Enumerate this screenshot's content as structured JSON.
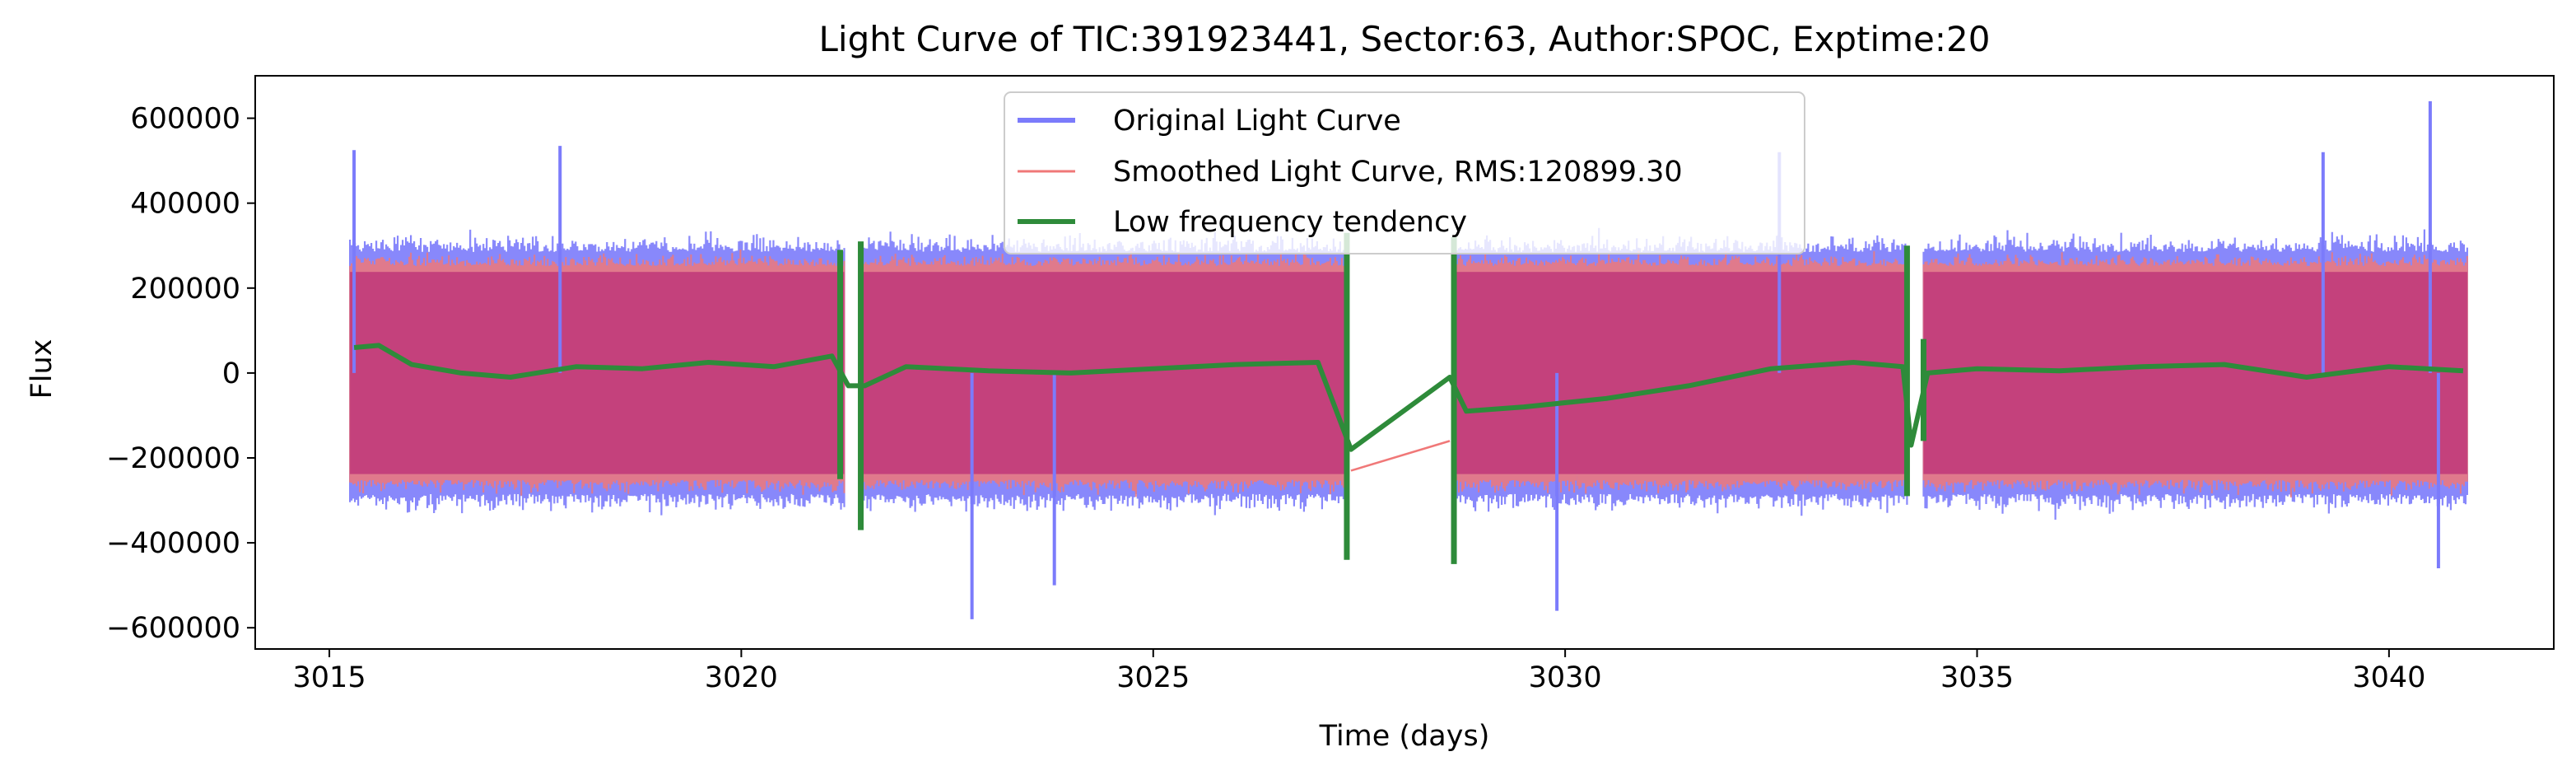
{
  "chart_data": {
    "type": "line",
    "title": "Light Curve of TIC:391923441, Sector:63, Author:SPOC, Exptime:20",
    "xlabel": "Time (days)",
    "ylabel": "Flux",
    "xlim": [
      3014.1,
      3042.0
    ],
    "ylim": [
      -650000,
      700000
    ],
    "xticks": [
      3015,
      3020,
      3025,
      3030,
      3035,
      3040
    ],
    "xtick_labels": [
      "3015",
      "3020",
      "3025",
      "3030",
      "3035",
      "3040"
    ],
    "yticks": [
      -600000,
      -400000,
      -200000,
      0,
      200000,
      400000,
      600000
    ],
    "ytick_labels": [
      "−600000",
      "−400000",
      "−200000",
      "0",
      "200000",
      "400000",
      "600000"
    ],
    "grid": false,
    "legend_position": "top-center",
    "segments": [
      [
        3015.25,
        3021.25
      ],
      [
        3021.45,
        3027.35
      ],
      [
        3028.65,
        3034.15
      ],
      [
        3034.35,
        3040.95
      ]
    ],
    "series": [
      {
        "name": "Original Light Curve",
        "color": "#7b7bfb",
        "typical_range": [
          -300000,
          300000
        ],
        "extremes": [
          {
            "x": 3015.3,
            "y": 525000
          },
          {
            "x": 3017.8,
            "y": 535000
          },
          {
            "x": 3022.8,
            "y": -580000
          },
          {
            "x": 3023.8,
            "y": -500000
          },
          {
            "x": 3029.9,
            "y": -560000
          },
          {
            "x": 3032.6,
            "y": 520000
          },
          {
            "x": 3039.2,
            "y": 520000
          },
          {
            "x": 3040.5,
            "y": 640000
          },
          {
            "x": 3040.6,
            "y": -460000
          }
        ]
      },
      {
        "name": "Smoothed Light Curve, RMS:120899.30",
        "color": "#f07878",
        "typical_range": [
          -280000,
          280000
        ],
        "gap_line": [
          {
            "x": 3027.4,
            "y": -230000
          },
          {
            "x": 3028.6,
            "y": -160000
          }
        ]
      },
      {
        "name": "Low frequency tendency",
        "color": "#2e8b3a",
        "trend": [
          {
            "x": 3015.3,
            "y": 60000
          },
          {
            "x": 3015.6,
            "y": 65000
          },
          {
            "x": 3016.0,
            "y": 20000
          },
          {
            "x": 3016.6,
            "y": 0
          },
          {
            "x": 3017.2,
            "y": -10000
          },
          {
            "x": 3018.0,
            "y": 15000
          },
          {
            "x": 3018.8,
            "y": 10000
          },
          {
            "x": 3019.6,
            "y": 25000
          },
          {
            "x": 3020.4,
            "y": 15000
          },
          {
            "x": 3021.1,
            "y": 40000
          },
          {
            "x": 3021.3,
            "y": -30000
          },
          {
            "x": 3021.5,
            "y": -30000
          },
          {
            "x": 3022.0,
            "y": 15000
          },
          {
            "x": 3023.0,
            "y": 5000
          },
          {
            "x": 3024.0,
            "y": 0
          },
          {
            "x": 3025.0,
            "y": 10000
          },
          {
            "x": 3026.0,
            "y": 20000
          },
          {
            "x": 3027.0,
            "y": 25000
          },
          {
            "x": 3027.4,
            "y": -180000
          },
          {
            "x": 3028.6,
            "y": -10000
          },
          {
            "x": 3028.8,
            "y": -90000
          },
          {
            "x": 3029.5,
            "y": -80000
          },
          {
            "x": 3030.5,
            "y": -60000
          },
          {
            "x": 3031.5,
            "y": -30000
          },
          {
            "x": 3032.5,
            "y": 10000
          },
          {
            "x": 3033.5,
            "y": 25000
          },
          {
            "x": 3034.1,
            "y": 15000
          },
          {
            "x": 3034.2,
            "y": -170000
          },
          {
            "x": 3034.4,
            "y": 0
          },
          {
            "x": 3035.0,
            "y": 10000
          },
          {
            "x": 3036.0,
            "y": 5000
          },
          {
            "x": 3037.0,
            "y": 15000
          },
          {
            "x": 3038.0,
            "y": 20000
          },
          {
            "x": 3039.0,
            "y": -10000
          },
          {
            "x": 3040.0,
            "y": 15000
          },
          {
            "x": 3040.9,
            "y": 5000
          }
        ],
        "edge_spikes": [
          {
            "x": 3021.2,
            "ymin": -250000,
            "ymax": 290000
          },
          {
            "x": 3021.45,
            "ymin": -370000,
            "ymax": 310000
          },
          {
            "x": 3027.35,
            "ymin": -440000,
            "ymax": 330000
          },
          {
            "x": 3028.65,
            "ymin": -450000,
            "ymax": 320000
          },
          {
            "x": 3034.15,
            "ymin": -290000,
            "ymax": 300000
          },
          {
            "x": 3034.35,
            "ymin": -160000,
            "ymax": 80000
          }
        ]
      }
    ],
    "fill_color_overlap": "#c13c7b"
  }
}
